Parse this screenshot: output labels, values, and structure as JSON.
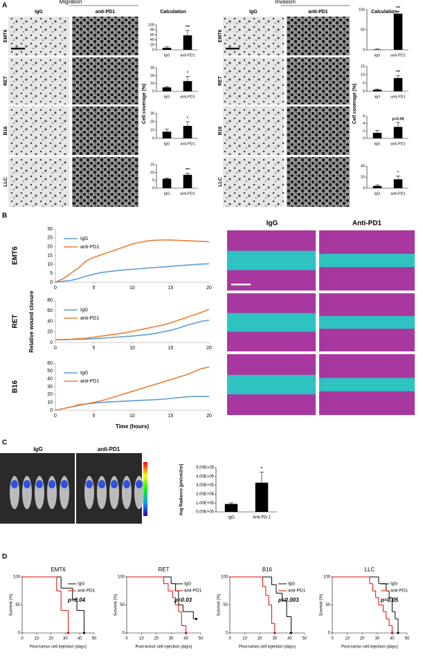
{
  "panel_labels": [
    "A",
    "B",
    "C",
    "D"
  ],
  "migration": {
    "title": "Migration",
    "columns": [
      "IgG",
      "anti-PD1",
      "Calculation"
    ],
    "rows": [
      "EMT6",
      "RET",
      "B16",
      "LLC"
    ],
    "y_label": "Cell coverage (%)"
  },
  "invasion": {
    "title": "Invasion",
    "columns": [
      "IgG",
      "anti-PD1",
      "Calculation"
    ],
    "rows": [
      "EMT6",
      "RET",
      "B16",
      "LLC"
    ],
    "y_label": "Cell coverage (%)"
  },
  "wound_closure": {
    "y_label": "Relative wound closure",
    "x_label": "Time (hours)",
    "columns": [
      "IgG",
      "Anti-PD1"
    ]
  },
  "imaging": {
    "columns": [
      "IgG",
      "anti-PD1"
    ]
  },
  "chart_data": [
    {
      "type": "bar",
      "categories": [
        "IgG",
        "anti-PD1"
      ],
      "values": [
        8,
        58
      ],
      "errors": [
        4,
        20
      ],
      "color": "#000000",
      "ylim": [
        0,
        100
      ],
      "yticks": [
        0,
        20,
        40,
        60,
        80,
        100
      ],
      "annotation": "***"
    },
    {
      "type": "bar",
      "categories": [
        "IgG",
        "anti-PD1"
      ],
      "values": [
        5,
        13
      ],
      "errors": [
        1,
        6
      ],
      "color": "#000000",
      "ylim": [
        0,
        30
      ],
      "yticks": [
        0,
        10,
        20,
        30
      ],
      "annotation": "*"
    },
    {
      "type": "bar",
      "categories": [
        "IgG",
        "anti-PD1"
      ],
      "values": [
        8,
        15
      ],
      "errors": [
        3,
        5
      ],
      "color": "#000000",
      "ylim": [
        0,
        30
      ],
      "yticks": [
        0,
        10,
        20,
        30
      ],
      "annotation": "*"
    },
    {
      "type": "bar",
      "categories": [
        "IgG",
        "anti-PD1"
      ],
      "values": [
        6,
        8.5
      ],
      "errors": [
        0.5,
        1
      ],
      "color": "#000000",
      "ylim": [
        0,
        15
      ],
      "yticks": [
        0,
        5,
        10,
        15
      ],
      "annotation": "***"
    },
    {
      "type": "bar",
      "categories": [
        "IgG",
        "anti-PD1"
      ],
      "values": [
        1,
        90
      ],
      "errors": [
        1,
        6
      ],
      "color": "#000000",
      "ylim": [
        0,
        100
      ],
      "yticks": [
        0,
        50,
        100
      ],
      "annotation": "***"
    },
    {
      "type": "bar",
      "categories": [
        "IgG",
        "anti-PD1"
      ],
      "values": [
        1,
        8
      ],
      "errors": [
        0.3,
        1.5
      ],
      "color": "#000000",
      "ylim": [
        0,
        15
      ],
      "yticks": [
        0,
        5,
        10,
        15
      ],
      "annotation": "***"
    },
    {
      "type": "bar",
      "categories": [
        "IgG",
        "anti-PD1"
      ],
      "values": [
        1.5,
        3.1
      ],
      "errors": [
        0.7,
        1.2
      ],
      "color": "#000000",
      "ylim": [
        0,
        6
      ],
      "yticks": [
        0,
        2,
        4,
        6
      ],
      "annotation": "p=0.06"
    },
    {
      "type": "bar",
      "categories": [
        "IgG",
        "anti-PD1"
      ],
      "values": [
        4,
        16
      ],
      "errors": [
        2,
        6
      ],
      "color": "#000000",
      "ylim": [
        0,
        40
      ],
      "yticks": [
        0,
        20,
        40
      ],
      "annotation": "*"
    },
    {
      "type": "line",
      "title": "EMT6",
      "x": [
        0,
        1,
        2,
        3,
        4,
        5,
        6,
        7,
        8,
        9,
        10,
        11,
        12,
        13,
        14,
        15,
        16,
        17,
        18,
        19,
        20
      ],
      "xlim": [
        0,
        20
      ],
      "xticks": [
        0,
        5,
        10,
        15,
        20
      ],
      "ylim": [
        0,
        30
      ],
      "yticks": [
        0,
        5,
        10,
        15,
        20,
        25,
        30
      ],
      "series": [
        {
          "name": "IgG",
          "color": "#5b9bd5",
          "values": [
            0,
            0.5,
            1,
            2,
            3.5,
            4.5,
            5.5,
            6,
            6.5,
            7,
            7.3,
            7.6,
            8,
            8.3,
            8.6,
            9,
            9.3,
            9.6,
            9.9,
            10.2,
            10.4
          ]
        },
        {
          "name": "anti-PD1",
          "color": "#ed7d31",
          "values": [
            0,
            2,
            5,
            8,
            12,
            14,
            15.5,
            17,
            18.5,
            20,
            21.5,
            22.5,
            23.3,
            23.7,
            23.8,
            23.8,
            23.6,
            23.4,
            23.2,
            23,
            22.8
          ]
        }
      ]
    },
    {
      "type": "line",
      "title": "RET",
      "x": [
        0,
        1,
        2,
        3,
        4,
        5,
        6,
        7,
        8,
        9,
        10,
        11,
        12,
        13,
        14,
        15,
        16,
        17,
        18,
        19,
        20
      ],
      "xlim": [
        0,
        20
      ],
      "xticks": [
        0,
        5,
        10,
        15,
        20
      ],
      "ylim": [
        0,
        80
      ],
      "yticks": [
        0,
        20,
        40,
        60,
        80
      ],
      "series": [
        {
          "name": "IgG",
          "color": "#5b9bd5",
          "values": [
            5,
            5,
            5.5,
            6,
            6.5,
            7,
            8,
            9,
            10,
            11,
            12,
            13.5,
            15,
            17,
            20,
            23,
            27,
            32,
            36,
            40,
            42
          ]
        },
        {
          "name": "anti-PD1",
          "color": "#ed7d31",
          "values": [
            5,
            5.5,
            6,
            7,
            8,
            10,
            12,
            14,
            16,
            18,
            21,
            24,
            27,
            30,
            33,
            37,
            42,
            47,
            52,
            57,
            63
          ]
        }
      ]
    },
    {
      "type": "line",
      "title": "B16",
      "x": [
        0,
        1,
        2,
        3,
        4,
        5,
        6,
        7,
        8,
        9,
        10,
        11,
        12,
        13,
        14,
        15,
        16,
        17,
        18,
        19,
        20
      ],
      "xlim": [
        0,
        20
      ],
      "xticks": [
        0,
        5,
        10,
        15,
        20
      ],
      "ylim": [
        0,
        60
      ],
      "yticks": [
        0,
        10,
        20,
        30,
        40,
        50,
        60
      ],
      "series": [
        {
          "name": "IgG",
          "color": "#5b9bd5",
          "values": [
            0,
            2,
            4,
            6,
            8,
            9,
            10,
            10.5,
            11,
            11.5,
            12,
            12.5,
            13,
            13.5,
            14,
            15,
            16,
            17,
            17.5,
            17.5,
            17.5
          ]
        },
        {
          "name": "anti-PD1",
          "color": "#ed7d31",
          "values": [
            0,
            2,
            4,
            7,
            8,
            10,
            12,
            15,
            18,
            21,
            24,
            27,
            30,
            33,
            36,
            39,
            42,
            45,
            49,
            53,
            55
          ]
        }
      ]
    },
    {
      "type": "bar",
      "categories": [
        "IgG",
        "Anti-PD-1"
      ],
      "values": [
        90000,
        330000
      ],
      "errors": [
        12000,
        120000
      ],
      "color": "#000000",
      "ylim": [
        0,
        500000
      ],
      "yticks": [
        {
          "value": 0,
          "label": "0.00E+00"
        },
        {
          "value": 100000,
          "label": "1.00E+05"
        },
        {
          "value": 200000,
          "label": "2.00E+05"
        },
        {
          "value": 300000,
          "label": "3.00E+05"
        },
        {
          "value": 400000,
          "label": "4.00E+05"
        },
        {
          "value": 500000,
          "label": "5.00E+05"
        }
      ],
      "y_label": "Avg Radiance [p/s/cm2/sr]",
      "annotation": "*"
    },
    {
      "type": "step",
      "title": "EMT6",
      "y_label": "Survival (%)",
      "x_label": "Post-tumor cell injection (days)",
      "xlim": [
        0,
        50
      ],
      "xticks": [
        0,
        10,
        20,
        30,
        40,
        50
      ],
      "ylim": [
        0,
        100
      ],
      "yticks": [
        0,
        50,
        100
      ],
      "annotation": "p=0.04",
      "series": [
        {
          "name": "IgG",
          "color": "#000000",
          "x": [
            0,
            27,
            35,
            38,
            43
          ],
          "values": [
            100,
            80,
            60,
            40,
            0
          ]
        },
        {
          "name": "anti-PD1",
          "color": "#e00000",
          "x": [
            0,
            24,
            27,
            32
          ],
          "values": [
            100,
            75,
            40,
            0
          ]
        }
      ]
    },
    {
      "type": "step",
      "title": "RET",
      "y_label": "Survival (%)",
      "x_label": "Post-tumor cell injection (days)",
      "xlim": [
        0,
        50
      ],
      "xticks": [
        0,
        10,
        20,
        30,
        40,
        50
      ],
      "ylim": [
        0,
        100
      ],
      "yticks": [
        0,
        50,
        100
      ],
      "annotation": "p=0.03",
      "series": [
        {
          "name": "IgG",
          "color": "#000000",
          "x": [
            0,
            30,
            33,
            35,
            38,
            45,
            47
          ],
          "values": [
            100,
            88,
            75,
            50,
            38,
            25,
            25
          ]
        },
        {
          "name": "anti-PD1",
          "color": "#e00000",
          "x": [
            0,
            25,
            28,
            31,
            33,
            35,
            37,
            40
          ],
          "values": [
            100,
            88,
            75,
            63,
            50,
            38,
            13,
            0
          ]
        }
      ]
    },
    {
      "type": "step",
      "title": "B16",
      "y_label": "Survival (%)",
      "x_label": "Post-tumor cell injection (days)",
      "xlim": [
        0,
        50
      ],
      "xticks": [
        0,
        10,
        20,
        30,
        40,
        50
      ],
      "ylim": [
        0,
        100
      ],
      "yticks": [
        0,
        50,
        100
      ],
      "annotation": "p=0.003",
      "series": [
        {
          "name": "IgG",
          "color": "#000000",
          "x": [
            0,
            28,
            31,
            35,
            38,
            41
          ],
          "values": [
            100,
            86,
            71,
            57,
            29,
            0
          ]
        },
        {
          "name": "anti-PD1",
          "color": "#e00000",
          "x": [
            0,
            22,
            24,
            26,
            28,
            30
          ],
          "values": [
            100,
            83,
            67,
            50,
            17,
            0
          ]
        }
      ]
    },
    {
      "type": "step",
      "title": "LLC",
      "y_label": "Survival (%)",
      "x_label": "Post-tumor cell injection (days)",
      "xlim": [
        0,
        50
      ],
      "xticks": [
        0,
        10,
        20,
        30,
        40,
        50
      ],
      "ylim": [
        0,
        100
      ],
      "yticks": [
        0,
        50,
        100
      ],
      "annotation": "p=0.05",
      "series": [
        {
          "name": "IgG",
          "color": "#000000",
          "x": [
            0,
            31,
            36,
            38,
            40,
            42,
            44
          ],
          "values": [
            100,
            88,
            75,
            63,
            38,
            25,
            0
          ]
        },
        {
          "name": "anti-PD1",
          "color": "#e00000",
          "x": [
            0,
            25,
            27,
            29,
            31,
            34,
            36,
            38,
            40
          ],
          "values": [
            100,
            88,
            75,
            63,
            50,
            38,
            25,
            13,
            0
          ]
        }
      ]
    }
  ]
}
